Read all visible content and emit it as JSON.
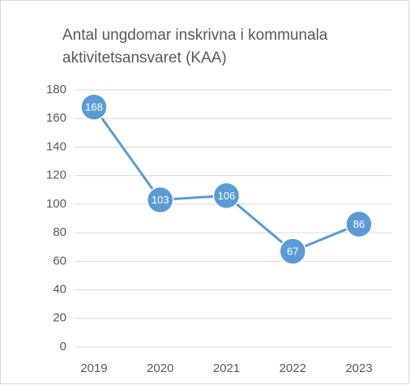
{
  "chart_data": {
    "type": "line",
    "title": "Antal ungdomar inskrivna i kommunala aktivitetsansvaret (KAA)",
    "categories": [
      "2019",
      "2020",
      "2021",
      "2022",
      "2023"
    ],
    "values": [
      168,
      103,
      106,
      67,
      86
    ],
    "color": "#5b9bd5",
    "ylim": [
      0,
      180
    ],
    "yticks": [
      0,
      20,
      40,
      60,
      80,
      100,
      120,
      140,
      160,
      180
    ],
    "grid": true
  }
}
